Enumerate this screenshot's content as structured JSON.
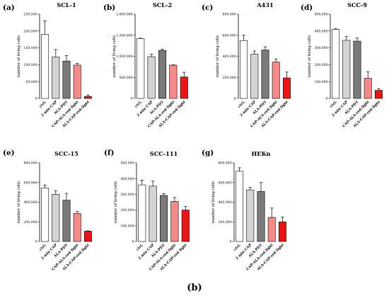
{
  "figure": {
    "caption": "(b)"
  },
  "colors": {
    "ctrl": "#ffffff",
    "cap": "#d4d4d4",
    "pdt": "#7a7a7a",
    "cap_ala": "#f58a8a",
    "ala_cap": "#e81616",
    "stroke": "#000000"
  },
  "chart_data": [
    {
      "panel": "(a)",
      "type": "bar",
      "title": "SCL-1",
      "ylabel": "number of living cells",
      "categories": [
        "ctrl.",
        "2 min CAP",
        "ALA-PDT",
        "CAP-ALA-red light",
        "ALA-CAP-red light"
      ],
      "yticks": [
        "0",
        "50,000",
        "100,000",
        "150,000",
        "200,000",
        "250,000"
      ],
      "ylim": [
        0,
        250000
      ],
      "values": [
        190000,
        123000,
        111000,
        99000,
        6000
      ],
      "errors": [
        40000,
        22000,
        16000,
        5000,
        4000
      ]
    },
    {
      "panel": "(b)",
      "type": "bar",
      "title": "SCL-2",
      "ylabel": "number of living cells",
      "categories": [
        "ctrl.",
        "2 min CAP",
        "ALA-PDT",
        "CAP-ALA-red light",
        "ALA-CAP-red light"
      ],
      "yticks": [
        "0",
        "500,000",
        "1,000,000",
        "1,500,000",
        "2,000,000"
      ],
      "ylim": [
        0,
        2000000
      ],
      "values": [
        1420000,
        990000,
        1140000,
        790000,
        510000
      ],
      "errors": [
        10000,
        60000,
        25000,
        8000,
        110000
      ]
    },
    {
      "panel": "(c)",
      "type": "bar",
      "title": "A431",
      "ylabel": "number of living cells",
      "categories": [
        "ctrl.",
        "2 min CAP",
        "ALA-PDT",
        "CAP-ALA-red light",
        "ALA-CAP-red light"
      ],
      "yticks": [
        "0",
        "200,000",
        "400,000",
        "600,000",
        "800,000"
      ],
      "ylim": [
        0,
        800000
      ],
      "values": [
        550000,
        420000,
        460000,
        345000,
        195000
      ],
      "errors": [
        50000,
        30000,
        30000,
        30000,
        55000
      ]
    },
    {
      "panel": "(d)",
      "type": "bar",
      "title": "SCC-9",
      "ylabel": "number of living cells",
      "categories": [
        "ctrl.",
        "2 min CAP",
        "ALA-PDT",
        "CAP-ALA-red light",
        "ALA-CAP-red light"
      ],
      "yticks": [
        "0",
        "100,000",
        "200,000",
        "300,000",
        "400,000",
        "500,000"
      ],
      "ylim": [
        0,
        500000
      ],
      "values": [
        410000,
        345000,
        340000,
        120000,
        48000
      ],
      "errors": [
        5000,
        22000,
        18000,
        38000,
        10000
      ]
    },
    {
      "panel": "(e)",
      "type": "bar",
      "title": "SCC-15",
      "ylabel": "number of living cells",
      "categories": [
        "ctrl.",
        "2 min CAP",
        "ALA-PDT",
        "CAP-ALA-red light",
        "ALA-CAP-red light"
      ],
      "yticks": [
        "0",
        "200,000",
        "400,000",
        "600,000",
        "800,000"
      ],
      "ylim": [
        0,
        800000
      ],
      "values": [
        545000,
        480000,
        420000,
        285000,
        105000
      ],
      "errors": [
        30000,
        38000,
        70000,
        20000,
        4000
      ]
    },
    {
      "panel": "(f)",
      "type": "bar",
      "title": "SCC-111",
      "ylabel": "number of living cells",
      "categories": [
        "ctrl.",
        "2 min CAP",
        "ALA-PDT",
        "CAP-ALA-red light",
        "ALA-CAP-red light"
      ],
      "yticks": [
        "0",
        "100,000",
        "200,000",
        "300,000",
        "400,000",
        "500,000"
      ],
      "ylim": [
        0,
        500000
      ],
      "values": [
        360000,
        352000,
        293000,
        255000,
        200000
      ],
      "errors": [
        30000,
        32000,
        12000,
        25000,
        22000
      ]
    },
    {
      "panel": "(g)",
      "type": "bar",
      "title": "HEKn",
      "ylabel": "number of living cells",
      "categories": [
        "ctrl.",
        "2 min CAP",
        "ALA-PDT",
        "CAP-ALA-red light",
        "ALA-CAP-red light"
      ],
      "yticks": [
        "0",
        "200,000",
        "400,000",
        "600,000",
        "800,000"
      ],
      "ylim": [
        0,
        800000
      ],
      "values": [
        715000,
        525000,
        510000,
        245000,
        200000
      ],
      "errors": [
        35000,
        25000,
        90000,
        95000,
        50000
      ]
    }
  ]
}
